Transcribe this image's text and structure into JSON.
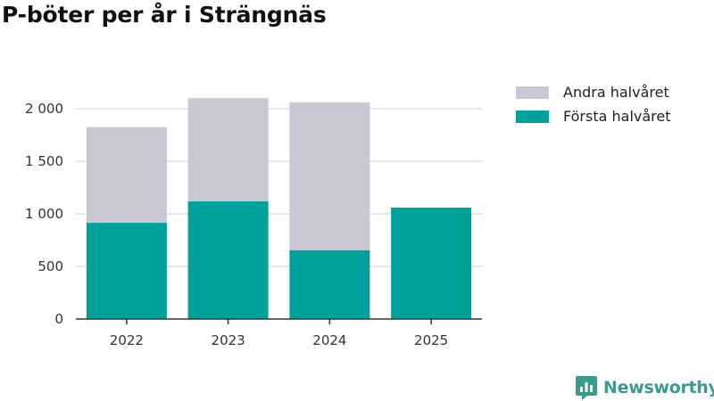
{
  "title": "P-böter per år i Strängnäs",
  "brand": "Newsworthy",
  "colors": {
    "first_half": "#00a19a",
    "second_half": "#c8c7d2",
    "grid": "#dddddd",
    "axis": "#333333",
    "brand": "#3a9a8c"
  },
  "chart_data": {
    "type": "bar",
    "stacked": true,
    "categories": [
      "2022",
      "2023",
      "2024",
      "2025"
    ],
    "series": [
      {
        "name": "Första halvåret",
        "values": [
          915,
          1120,
          655,
          1060
        ]
      },
      {
        "name": "Andra halvåret",
        "values": [
          910,
          980,
          1405,
          0
        ]
      }
    ],
    "ylim": [
      0,
      2000
    ],
    "yticks": [
      0,
      500,
      1000,
      1500,
      2000
    ],
    "ytick_labels": [
      "0",
      "500",
      "1 000",
      "1 500",
      "2 000"
    ],
    "grid": true,
    "legend_position": "top-right",
    "legend_order": [
      "Andra halvåret",
      "Första halvåret"
    ]
  }
}
